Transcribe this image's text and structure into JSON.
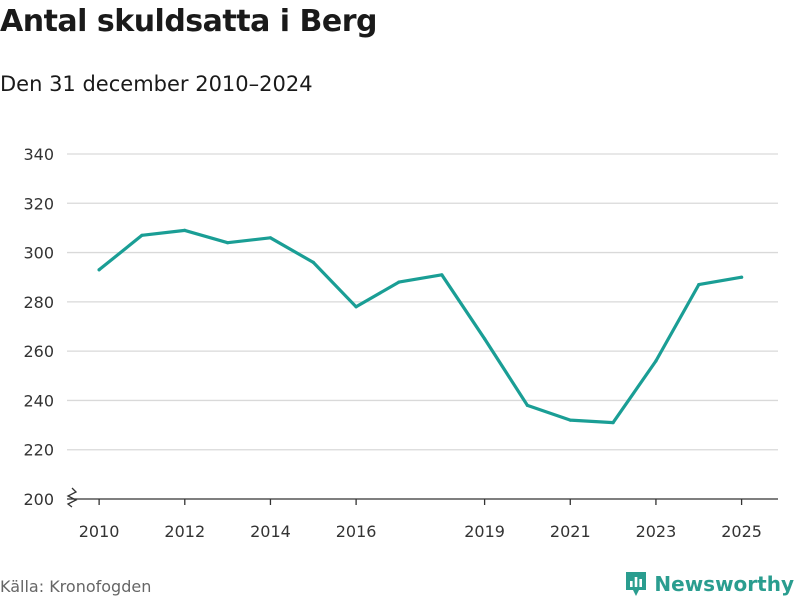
{
  "header": {
    "title": "Antal skuldsatta i Berg",
    "subtitle": "Den 31 december 2010–2024"
  },
  "footer": {
    "source": "Källa: Kronofogden",
    "brand": "Newsworthy"
  },
  "colors": {
    "line": "#1a9e95",
    "grid": "#d9d9d9",
    "axis": "#333333"
  },
  "icons": {
    "brand_logo": "newsworthy-bar-chart-icon",
    "axis_break": "zigzag-axis-break-icon"
  },
  "chart_data": {
    "type": "line",
    "title": "Antal skuldsatta i Berg",
    "subtitle": "Den 31 december 2010–2024",
    "xlabel": "",
    "ylabel": "",
    "x": [
      2010,
      2011,
      2012,
      2013,
      2014,
      2015,
      2016,
      2017,
      2018,
      2019,
      2020,
      2021,
      2022,
      2023,
      2024,
      2025
    ],
    "values": [
      293,
      307,
      309,
      304,
      306,
      296,
      278,
      288,
      291,
      265,
      238,
      232,
      231,
      256,
      287,
      290
    ],
    "xticks": [
      "2010",
      "2012",
      "2014",
      "2016",
      "2019",
      "2021",
      "2023",
      "2025"
    ],
    "ytick_values": [
      200,
      220,
      240,
      260,
      280,
      300,
      320,
      340
    ],
    "yticks": [
      "200",
      "220",
      "240",
      "260",
      "280",
      "300",
      "320",
      "340"
    ],
    "ylim": [
      200,
      340
    ],
    "xlim": [
      2009.25,
      2025.85
    ],
    "grid": true,
    "axis_break": true
  }
}
